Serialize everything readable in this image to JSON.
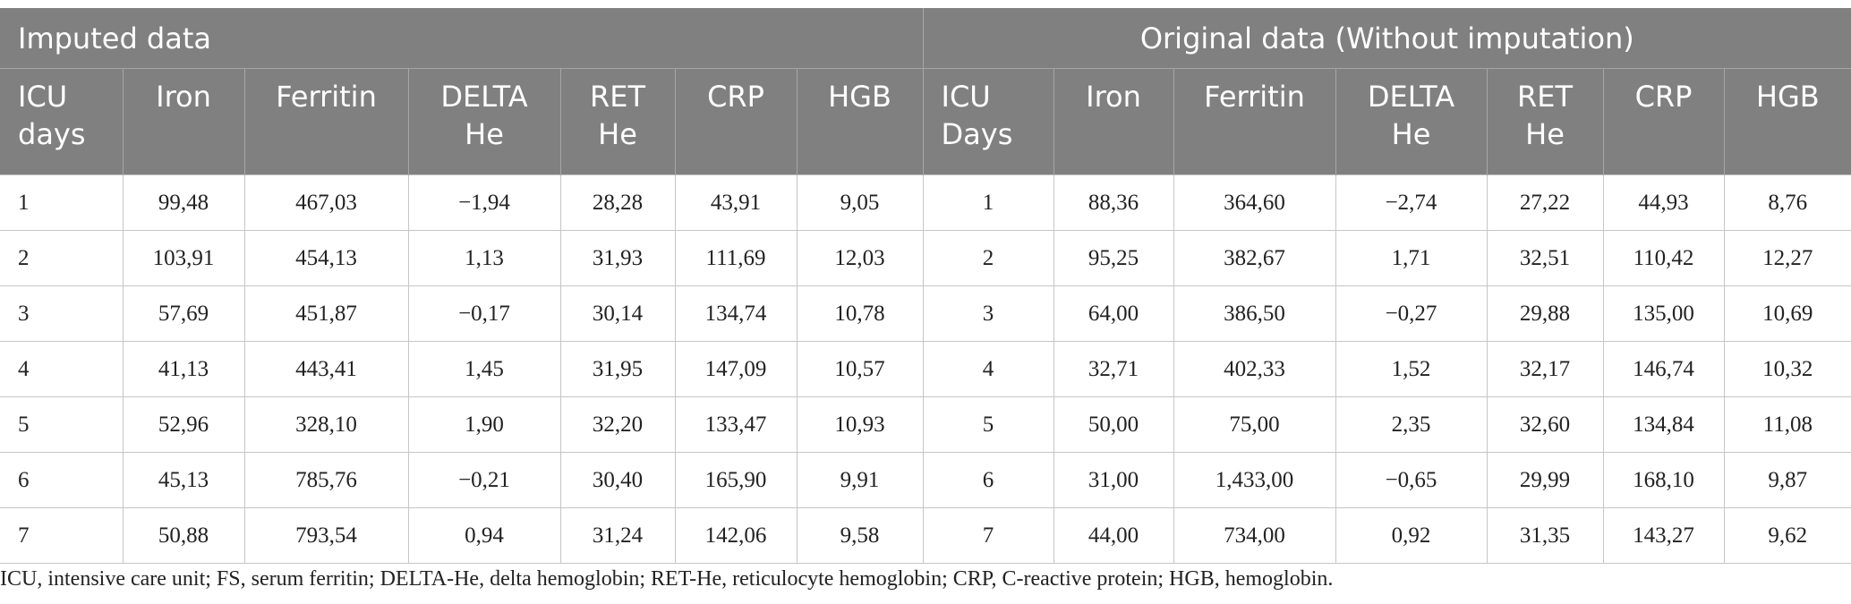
{
  "table": {
    "groups": [
      "Imputed data",
      "Original data (Without imputation)"
    ],
    "columns": [
      [
        "ICU",
        "days"
      ],
      [
        "Iron"
      ],
      [
        "Ferritin"
      ],
      [
        "DELTA",
        "He"
      ],
      [
        "RET",
        "He"
      ],
      [
        "CRP"
      ],
      [
        "HGB"
      ],
      [
        "ICU",
        "Days"
      ],
      [
        "Iron"
      ],
      [
        "Ferritin"
      ],
      [
        "DELTA",
        "He"
      ],
      [
        "RET",
        "He"
      ],
      [
        "CRP"
      ],
      [
        "HGB"
      ]
    ],
    "rows": [
      [
        "1",
        "99,48",
        "467,03",
        "−1,94",
        "28,28",
        "43,91",
        "9,05",
        "1",
        "88,36",
        "364,60",
        "−2,74",
        "27,22",
        "44,93",
        "8,76"
      ],
      [
        "2",
        "103,91",
        "454,13",
        "1,13",
        "31,93",
        "111,69",
        "12,03",
        "2",
        "95,25",
        "382,67",
        "1,71",
        "32,51",
        "110,42",
        "12,27"
      ],
      [
        "3",
        "57,69",
        "451,87",
        "−0,17",
        "30,14",
        "134,74",
        "10,78",
        "3",
        "64,00",
        "386,50",
        "−0,27",
        "29,88",
        "135,00",
        "10,69"
      ],
      [
        "4",
        "41,13",
        "443,41",
        "1,45",
        "31,95",
        "147,09",
        "10,57",
        "4",
        "32,71",
        "402,33",
        "1,52",
        "32,17",
        "146,74",
        "10,32"
      ],
      [
        "5",
        "52,96",
        "328,10",
        "1,90",
        "32,20",
        "133,47",
        "10,93",
        "5",
        "50,00",
        "75,00",
        "2,35",
        "32,60",
        "134,84",
        "11,08"
      ],
      [
        "6",
        "45,13",
        "785,76",
        "−0,21",
        "30,40",
        "165,90",
        "9,91",
        "6",
        "31,00",
        "1,433,00",
        "−0,65",
        "29,99",
        "168,10",
        "9,87"
      ],
      [
        "7",
        "50,88",
        "793,54",
        "0,94",
        "31,24",
        "142,06",
        "9,58",
        "7",
        "44,00",
        "734,00",
        "0,92",
        "31,35",
        "143,27",
        "9,62"
      ]
    ],
    "footnote": "ICU, intensive care unit; FS, serum ferritin; DELTA-He, delta hemoglobin; RET-He, reticulocyte hemoglobin; CRP, C-reactive protein; HGB, hemoglobin."
  }
}
